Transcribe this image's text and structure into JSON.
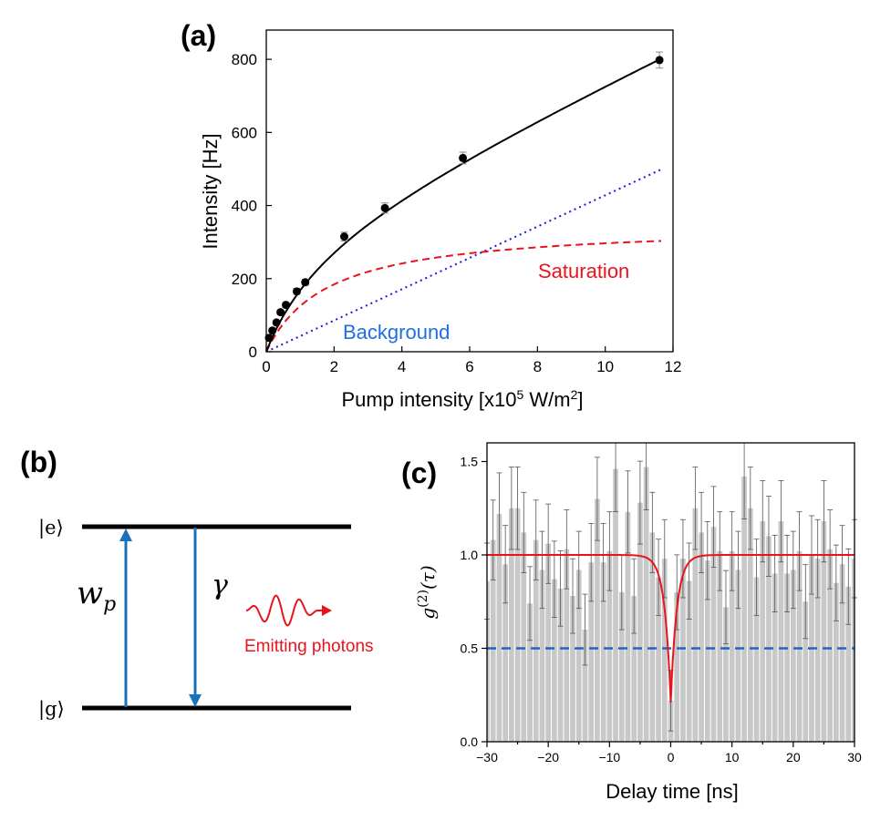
{
  "chart_data": [
    {
      "panel": "(a)",
      "type": "scatter",
      "xlabel_main": "Pump intensity [x10",
      "xlabel_sup": "5",
      "xlabel_unit": " W/m",
      "xlabel_sup2": "2",
      "xlabel_end": "]",
      "ylabel": "Intensity [Hz]",
      "xlim": [
        0,
        12
      ],
      "ylim": [
        0,
        880
      ],
      "xticks": [
        "0",
        "2",
        "4",
        "6",
        "8",
        "10",
        "12"
      ],
      "yticks": [
        "0",
        "200",
        "400",
        "600",
        "800"
      ],
      "points": [
        {
          "x": 0.08,
          "y": 38,
          "err": 5
        },
        {
          "x": 0.18,
          "y": 58,
          "err": 5
        },
        {
          "x": 0.3,
          "y": 80,
          "err": 6
        },
        {
          "x": 0.42,
          "y": 108,
          "err": 6
        },
        {
          "x": 0.58,
          "y": 128,
          "err": 7
        },
        {
          "x": 0.9,
          "y": 165,
          "err": 8
        },
        {
          "x": 1.15,
          "y": 190,
          "err": 8
        },
        {
          "x": 2.3,
          "y": 315,
          "err": 12
        },
        {
          "x": 3.5,
          "y": 393,
          "err": 14
        },
        {
          "x": 5.8,
          "y": 530,
          "err": 16
        },
        {
          "x": 11.6,
          "y": 798,
          "err": 22
        }
      ],
      "annotations": {
        "saturation": "Saturation",
        "background": "Background"
      },
      "model": {
        "saturation_amp": 350,
        "saturation_k": 1.8,
        "background_slope": 42.8
      },
      "colors": {
        "fit": "#000000",
        "saturation": "#e8141c",
        "background": "#1a1ae6",
        "background_text": "#1f6fe0"
      }
    },
    {
      "panel": "(b)",
      "type": "diagram",
      "level_e": "|e⟩",
      "level_g": "|g⟩",
      "pump_label": "w",
      "pump_sub": "p",
      "decay_label": "γ",
      "emit_label": "Emitting photons",
      "colors": {
        "arrow": "#1a72bb",
        "emit": "#e8141c"
      }
    },
    {
      "panel": "(c)",
      "type": "bar",
      "xlabel": "Delay time [ns]",
      "ylabel_base": "g",
      "ylabel_sup": "(2)",
      "ylabel_arg": "(τ)",
      "xlim": [
        -30,
        30
      ],
      "ylim": [
        0,
        1.6
      ],
      "xticks": [
        "−30",
        "−20",
        "−10",
        "0",
        "10",
        "20",
        "30"
      ],
      "yticks": [
        "0.0",
        "0.5",
        "1.0",
        "1.5"
      ],
      "bin_width": 1,
      "bins_start": -30,
      "values": [
        0.86,
        1.08,
        1.22,
        0.95,
        1.25,
        1.25,
        1.12,
        0.74,
        1.08,
        0.92,
        1.06,
        0.87,
        0.82,
        1.03,
        0.78,
        0.92,
        0.6,
        0.96,
        1.3,
        0.96,
        1.02,
        1.46,
        0.8,
        1.23,
        0.78,
        1.28,
        1.47,
        1.12,
        0.88,
        0.98,
        0.22,
        0.8,
        0.98,
        0.86,
        1.25,
        1.12,
        0.97,
        1.15,
        1.02,
        0.72,
        1.02,
        0.92,
        1.42,
        1.25,
        0.88,
        1.18,
        1.1,
        0.9,
        1.18,
        0.9,
        0.92,
        1.02,
        0.75,
        1.0,
        0.98,
        1.18,
        1.03,
        0.85,
        0.95,
        0.83,
        0.98
      ],
      "reference_line": 0.5,
      "fit": {
        "baseline": 1.0,
        "min": 0.21,
        "tau": 1.0
      },
      "colors": {
        "bar": "#c8c8c8",
        "fit": "#e8141c",
        "ref": "#1a66cc"
      }
    }
  ]
}
